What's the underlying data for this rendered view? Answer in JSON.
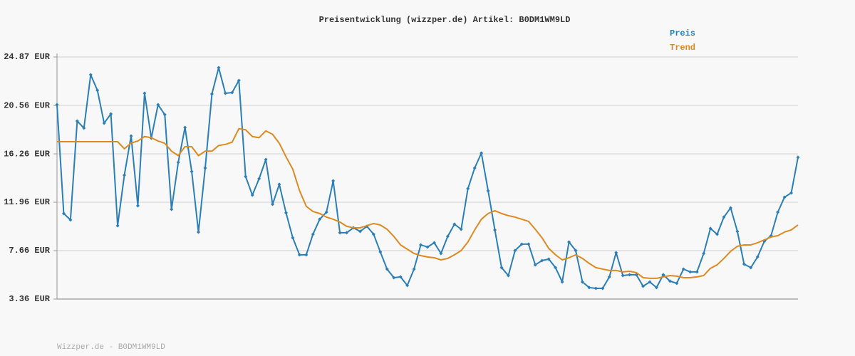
{
  "chart_data": {
    "type": "line",
    "title": "Preisentwicklung (wizzper.de) Artikel: B0DM1WM9LD",
    "footer": "Wizzper.de - B0DM1WM9LD",
    "categories": [
      null,
      null,
      null,
      null,
      null,
      null,
      null,
      null,
      null,
      null,
      null,
      null,
      null,
      null,
      null,
      null,
      null,
      null,
      null,
      null,
      null,
      null,
      null,
      null,
      null,
      null,
      null,
      null,
      null,
      null,
      null,
      null,
      null,
      null,
      null,
      null,
      null,
      null,
      null,
      null,
      null,
      null,
      null,
      null,
      null,
      null,
      null,
      null,
      null,
      null,
      null,
      null,
      null,
      null,
      null,
      null,
      null,
      null,
      null,
      null,
      null,
      null,
      null,
      null,
      null,
      null,
      null,
      null,
      null,
      null,
      null,
      null,
      null,
      null,
      null,
      null,
      null,
      null,
      null,
      null,
      null,
      null,
      null,
      null,
      null,
      null,
      null,
      null,
      null,
      null,
      null,
      null,
      null,
      null,
      null,
      null,
      null,
      null,
      null,
      null,
      null,
      null,
      null,
      null,
      null,
      null,
      null,
      null,
      null,
      null,
      null
    ],
    "series": [
      {
        "name": "Preis",
        "color": "#2b7fb8",
        "markers": true,
        "values": [
          20.63,
          10.96,
          10.39,
          19.18,
          18.55,
          23.29,
          21.9,
          18.99,
          19.81,
          9.88,
          14.37,
          17.85,
          11.65,
          21.64,
          17.66,
          20.63,
          19.75,
          11.33,
          15.51,
          18.61,
          14.69,
          9.31,
          15.0,
          21.58,
          23.92,
          21.64,
          21.71,
          22.78,
          14.24,
          12.6,
          14.05,
          15.76,
          11.78,
          13.55,
          11.02,
          8.8,
          7.29,
          7.29,
          9.12,
          10.45,
          11.08,
          13.86,
          9.25,
          9.25,
          9.69,
          9.37,
          9.82,
          9.12,
          7.54,
          6.02,
          5.26,
          5.33,
          4.57,
          6.02,
          8.17,
          7.98,
          8.36,
          7.41,
          8.93,
          10.01,
          9.56,
          13.17,
          15.0,
          16.33,
          12.98,
          9.5,
          6.15,
          5.45,
          7.67,
          8.24,
          8.24,
          6.4,
          6.78,
          6.91,
          6.15,
          4.88,
          8.43,
          7.67,
          4.88,
          4.38,
          4.31,
          4.31,
          5.33,
          7.48,
          5.45,
          5.52,
          5.52,
          4.5,
          4.88,
          4.38,
          5.52,
          4.95,
          4.76,
          6.02,
          5.77,
          5.77,
          7.41,
          9.63,
          9.12,
          10.64,
          11.46,
          9.37,
          6.46,
          6.15,
          7.1,
          8.49,
          8.99,
          11.08,
          12.41,
          12.79,
          15.95
        ]
      },
      {
        "name": "Trend",
        "color": "#dd8a22",
        "markers": false,
        "values": [
          17.34,
          17.34,
          17.34,
          17.34,
          17.34,
          17.34,
          17.34,
          17.34,
          17.34,
          17.34,
          16.71,
          17.22,
          17.4,
          17.8,
          17.7,
          17.4,
          17.2,
          16.5,
          16.1,
          16.9,
          16.9,
          16.1,
          16.5,
          16.5,
          17.0,
          17.1,
          17.3,
          18.5,
          18.4,
          17.8,
          17.7,
          18.3,
          18.0,
          17.2,
          16.0,
          14.9,
          13.0,
          11.6,
          11.14,
          10.96,
          10.64,
          10.45,
          10.2,
          9.82,
          9.69,
          9.69,
          9.88,
          10.07,
          9.94,
          9.56,
          8.93,
          8.17,
          7.79,
          7.41,
          7.22,
          7.1,
          7.03,
          6.84,
          6.97,
          7.29,
          7.67,
          8.43,
          9.5,
          10.45,
          10.96,
          11.21,
          10.96,
          10.77,
          10.64,
          10.45,
          10.26,
          9.56,
          8.8,
          7.86,
          7.29,
          6.84,
          7.03,
          7.29,
          6.97,
          6.53,
          6.15,
          6.02,
          5.9,
          5.9,
          5.77,
          5.83,
          5.71,
          5.26,
          5.2,
          5.2,
          5.33,
          5.45,
          5.39,
          5.26,
          5.26,
          5.33,
          5.45,
          6.09,
          6.4,
          6.97,
          7.6,
          8.05,
          8.17,
          8.17,
          8.36,
          8.62,
          8.87,
          8.99,
          9.31,
          9.5,
          9.94
        ]
      }
    ],
    "ylim": [
      3.36,
      24.87
    ],
    "yticks": [
      {
        "value": 3.36,
        "label": "3.36 EUR"
      },
      {
        "value": 7.66,
        "label": "7.66 EUR"
      },
      {
        "value": 11.96,
        "label": "11.96 EUR"
      },
      {
        "value": 16.26,
        "label": "16.26 EUR"
      },
      {
        "value": 20.56,
        "label": "20.56 EUR"
      },
      {
        "value": 24.87,
        "label": "24.87 EUR"
      }
    ],
    "grid": true,
    "legend": "top-right"
  }
}
